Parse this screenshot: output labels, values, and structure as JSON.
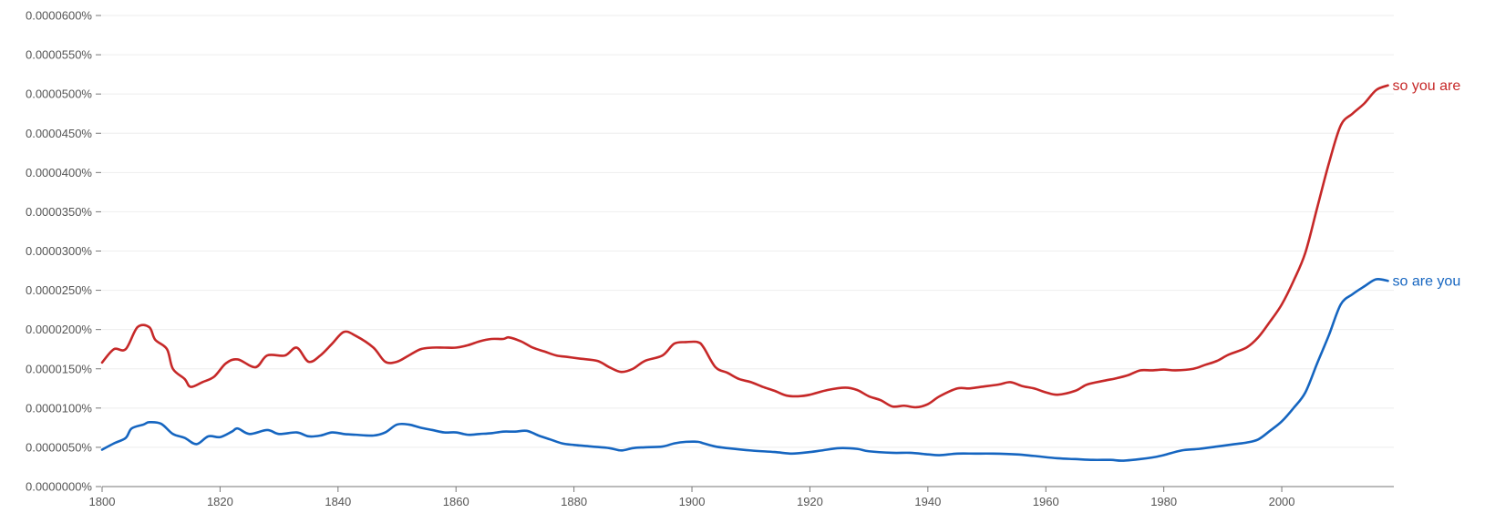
{
  "chart_data": {
    "type": "line",
    "title": "",
    "xlabel": "",
    "ylabel": "",
    "xlim": [
      1800,
      2019
    ],
    "ylim": [
      0,
      6e-07
    ],
    "grid": true,
    "legend": "inline labels at right end of lines",
    "yticks": [
      {
        "value": 6e-07,
        "label": "0.0000600%"
      },
      {
        "value": 5.5e-07,
        "label": "0.0000550%"
      },
      {
        "value": 5e-07,
        "label": "0.0000500%"
      },
      {
        "value": 4.5e-07,
        "label": "0.0000450%"
      },
      {
        "value": 4e-07,
        "label": "0.0000400%"
      },
      {
        "value": 3.5e-07,
        "label": "0.0000350%"
      },
      {
        "value": 3e-07,
        "label": "0.0000300%"
      },
      {
        "value": 2.5e-07,
        "label": "0.0000250%"
      },
      {
        "value": 2e-07,
        "label": "0.0000200%"
      },
      {
        "value": 1.5e-07,
        "label": "0.0000150%"
      },
      {
        "value": 1e-07,
        "label": "0.0000100%"
      },
      {
        "value": 5e-08,
        "label": "0.0000050%"
      },
      {
        "value": 0,
        "label": "0.0000000%"
      }
    ],
    "xticks": [
      {
        "value": 1800,
        "label": "1800"
      },
      {
        "value": 1820,
        "label": "1820"
      },
      {
        "value": 1840,
        "label": "1840"
      },
      {
        "value": 1860,
        "label": "1860"
      },
      {
        "value": 1880,
        "label": "1880"
      },
      {
        "value": 1900,
        "label": "1900"
      },
      {
        "value": 1920,
        "label": "1920"
      },
      {
        "value": 1940,
        "label": "1940"
      },
      {
        "value": 1960,
        "label": "1960"
      },
      {
        "value": 1980,
        "label": "1980"
      },
      {
        "value": 2000,
        "label": "2000"
      }
    ],
    "series": [
      {
        "name": "so you are",
        "color": "#c62828",
        "points": [
          [
            1800,
            1.58e-07
          ],
          [
            1802,
            1.75e-07
          ],
          [
            1804,
            1.75e-07
          ],
          [
            1806,
            2.03e-07
          ],
          [
            1808,
            2.03e-07
          ],
          [
            1809,
            1.87e-07
          ],
          [
            1811,
            1.75e-07
          ],
          [
            1812,
            1.5e-07
          ],
          [
            1814,
            1.37e-07
          ],
          [
            1815,
            1.27e-07
          ],
          [
            1817,
            1.33e-07
          ],
          [
            1819,
            1.4e-07
          ],
          [
            1821,
            1.57e-07
          ],
          [
            1823,
            1.62e-07
          ],
          [
            1826,
            1.52e-07
          ],
          [
            1828,
            1.67e-07
          ],
          [
            1831,
            1.67e-07
          ],
          [
            1833,
            1.77e-07
          ],
          [
            1835,
            1.59e-07
          ],
          [
            1837,
            1.67e-07
          ],
          [
            1839,
            1.82e-07
          ],
          [
            1841,
            1.97e-07
          ],
          [
            1843,
            1.92e-07
          ],
          [
            1846,
            1.77e-07
          ],
          [
            1848,
            1.59e-07
          ],
          [
            1850,
            1.59e-07
          ],
          [
            1852,
            1.67e-07
          ],
          [
            1854,
            1.75e-07
          ],
          [
            1856,
            1.77e-07
          ],
          [
            1858,
            1.77e-07
          ],
          [
            1860,
            1.77e-07
          ],
          [
            1862,
            1.8e-07
          ],
          [
            1864,
            1.85e-07
          ],
          [
            1866,
            1.88e-07
          ],
          [
            1868,
            1.88e-07
          ],
          [
            1869,
            1.9e-07
          ],
          [
            1871,
            1.85e-07
          ],
          [
            1873,
            1.77e-07
          ],
          [
            1875,
            1.72e-07
          ],
          [
            1877,
            1.67e-07
          ],
          [
            1879,
            1.65e-07
          ],
          [
            1881,
            1.63e-07
          ],
          [
            1884,
            1.6e-07
          ],
          [
            1886,
            1.52e-07
          ],
          [
            1888,
            1.46e-07
          ],
          [
            1890,
            1.5e-07
          ],
          [
            1892,
            1.6e-07
          ],
          [
            1895,
            1.67e-07
          ],
          [
            1897,
            1.82e-07
          ],
          [
            1899,
            1.84e-07
          ],
          [
            1901,
            1.84e-07
          ],
          [
            1902,
            1.77e-07
          ],
          [
            1904,
            1.52e-07
          ],
          [
            1906,
            1.45e-07
          ],
          [
            1908,
            1.37e-07
          ],
          [
            1910,
            1.33e-07
          ],
          [
            1912,
            1.27e-07
          ],
          [
            1914,
            1.22e-07
          ],
          [
            1916,
            1.16e-07
          ],
          [
            1918,
            1.15e-07
          ],
          [
            1920,
            1.17e-07
          ],
          [
            1923,
            1.23e-07
          ],
          [
            1926,
            1.26e-07
          ],
          [
            1928,
            1.23e-07
          ],
          [
            1930,
            1.15e-07
          ],
          [
            1932,
            1.1e-07
          ],
          [
            1934,
            1.02e-07
          ],
          [
            1936,
            1.03e-07
          ],
          [
            1938,
            1.01e-07
          ],
          [
            1940,
            1.05e-07
          ],
          [
            1942,
            1.15e-07
          ],
          [
            1945,
            1.25e-07
          ],
          [
            1947,
            1.25e-07
          ],
          [
            1949,
            1.27e-07
          ],
          [
            1952,
            1.3e-07
          ],
          [
            1954,
            1.33e-07
          ],
          [
            1956,
            1.28e-07
          ],
          [
            1958,
            1.25e-07
          ],
          [
            1960,
            1.2e-07
          ],
          [
            1962,
            1.17e-07
          ],
          [
            1965,
            1.22e-07
          ],
          [
            1967,
            1.3e-07
          ],
          [
            1970,
            1.35e-07
          ],
          [
            1972,
            1.38e-07
          ],
          [
            1974,
            1.42e-07
          ],
          [
            1976,
            1.48e-07
          ],
          [
            1978,
            1.48e-07
          ],
          [
            1980,
            1.49e-07
          ],
          [
            1982,
            1.48e-07
          ],
          [
            1985,
            1.5e-07
          ],
          [
            1987,
            1.55e-07
          ],
          [
            1989,
            1.6e-07
          ],
          [
            1991,
            1.68e-07
          ],
          [
            1994,
            1.77e-07
          ],
          [
            1996,
            1.9e-07
          ],
          [
            1998,
            2.1e-07
          ],
          [
            2000,
            2.32e-07
          ],
          [
            2002,
            2.62e-07
          ],
          [
            2004,
            2.98e-07
          ],
          [
            2006,
            3.55e-07
          ],
          [
            2008,
            4.12e-07
          ],
          [
            2010,
            4.6e-07
          ],
          [
            2012,
            4.75e-07
          ],
          [
            2014,
            4.88e-07
          ],
          [
            2016,
            5.05e-07
          ],
          [
            2018,
            5.11e-07
          ]
        ]
      },
      {
        "name": "so are you",
        "color": "#1565c0",
        "points": [
          [
            1800,
            4.7e-08
          ],
          [
            1802,
            5.5e-08
          ],
          [
            1804,
            6.2e-08
          ],
          [
            1805,
            7.4e-08
          ],
          [
            1807,
            7.9e-08
          ],
          [
            1808,
            8.2e-08
          ],
          [
            1810,
            8e-08
          ],
          [
            1812,
            6.7e-08
          ],
          [
            1814,
            6.2e-08
          ],
          [
            1816,
            5.4e-08
          ],
          [
            1818,
            6.4e-08
          ],
          [
            1820,
            6.3e-08
          ],
          [
            1822,
            7e-08
          ],
          [
            1823,
            7.4e-08
          ],
          [
            1825,
            6.7e-08
          ],
          [
            1828,
            7.2e-08
          ],
          [
            1830,
            6.7e-08
          ],
          [
            1833,
            6.9e-08
          ],
          [
            1835,
            6.4e-08
          ],
          [
            1837,
            6.5e-08
          ],
          [
            1839,
            6.9e-08
          ],
          [
            1841,
            6.7e-08
          ],
          [
            1843,
            6.6e-08
          ],
          [
            1846,
            6.5e-08
          ],
          [
            1848,
            6.9e-08
          ],
          [
            1850,
            7.9e-08
          ],
          [
            1852,
            7.9e-08
          ],
          [
            1854,
            7.5e-08
          ],
          [
            1856,
            7.2e-08
          ],
          [
            1858,
            6.9e-08
          ],
          [
            1860,
            6.9e-08
          ],
          [
            1862,
            6.6e-08
          ],
          [
            1864,
            6.7e-08
          ],
          [
            1866,
            6.8e-08
          ],
          [
            1868,
            7e-08
          ],
          [
            1870,
            7e-08
          ],
          [
            1872,
            7.1e-08
          ],
          [
            1874,
            6.5e-08
          ],
          [
            1876,
            6e-08
          ],
          [
            1878,
            5.5e-08
          ],
          [
            1880,
            5.3e-08
          ],
          [
            1883,
            5.1e-08
          ],
          [
            1886,
            4.9e-08
          ],
          [
            1888,
            4.6e-08
          ],
          [
            1890,
            4.9e-08
          ],
          [
            1892,
            5e-08
          ],
          [
            1895,
            5.1e-08
          ],
          [
            1897,
            5.5e-08
          ],
          [
            1899,
            5.7e-08
          ],
          [
            1901,
            5.7e-08
          ],
          [
            1902,
            5.5e-08
          ],
          [
            1904,
            5.1e-08
          ],
          [
            1906,
            4.9e-08
          ],
          [
            1910,
            4.6e-08
          ],
          [
            1914,
            4.4e-08
          ],
          [
            1917,
            4.2e-08
          ],
          [
            1920,
            4.4e-08
          ],
          [
            1922,
            4.6e-08
          ],
          [
            1925,
            4.9e-08
          ],
          [
            1928,
            4.8e-08
          ],
          [
            1930,
            4.5e-08
          ],
          [
            1934,
            4.3e-08
          ],
          [
            1937,
            4.3e-08
          ],
          [
            1940,
            4.1e-08
          ],
          [
            1942,
            4e-08
          ],
          [
            1945,
            4.2e-08
          ],
          [
            1948,
            4.2e-08
          ],
          [
            1951,
            4.2e-08
          ],
          [
            1955,
            4.1e-08
          ],
          [
            1958,
            3.9e-08
          ],
          [
            1962,
            3.6e-08
          ],
          [
            1965,
            3.5e-08
          ],
          [
            1968,
            3.4e-08
          ],
          [
            1971,
            3.4e-08
          ],
          [
            1973,
            3.3e-08
          ],
          [
            1976,
            3.5e-08
          ],
          [
            1978,
            3.7e-08
          ],
          [
            1980,
            4e-08
          ],
          [
            1983,
            4.6e-08
          ],
          [
            1986,
            4.8e-08
          ],
          [
            1989,
            5.1e-08
          ],
          [
            1992,
            5.4e-08
          ],
          [
            1994,
            5.6e-08
          ],
          [
            1996,
            6e-08
          ],
          [
            1998,
            7.1e-08
          ],
          [
            2000,
            8.3e-08
          ],
          [
            2002,
            1e-07
          ],
          [
            2004,
            1.2e-07
          ],
          [
            2006,
            1.57e-07
          ],
          [
            2008,
            1.93e-07
          ],
          [
            2010,
            2.32e-07
          ],
          [
            2012,
            2.45e-07
          ],
          [
            2014,
            2.55e-07
          ],
          [
            2016,
            2.64e-07
          ],
          [
            2018,
            2.62e-07
          ]
        ]
      }
    ]
  }
}
